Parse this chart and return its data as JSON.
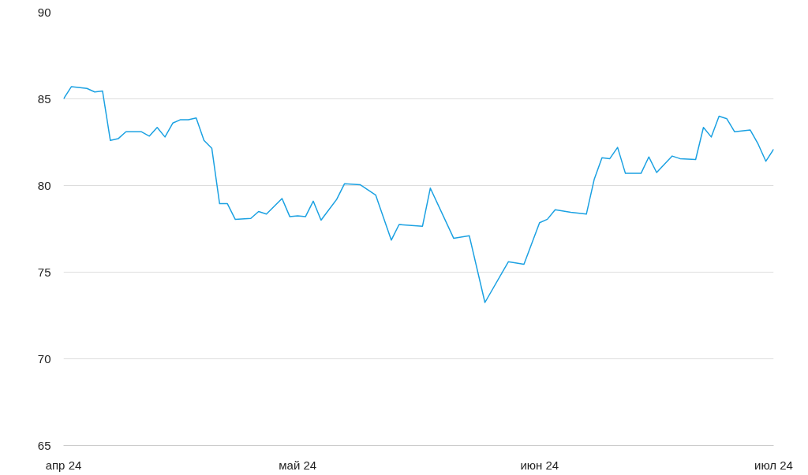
{
  "chart_data": {
    "type": "line",
    "x": [
      "2024-04-01",
      "2024-04-02",
      "2024-04-04",
      "2024-04-05",
      "2024-04-06",
      "2024-04-07",
      "2024-04-08",
      "2024-04-09",
      "2024-04-11",
      "2024-04-12",
      "2024-04-13",
      "2024-04-14",
      "2024-04-15",
      "2024-04-16",
      "2024-04-17",
      "2024-04-18",
      "2024-04-19",
      "2024-04-20",
      "2024-04-21",
      "2024-04-22",
      "2024-04-23",
      "2024-04-25",
      "2024-04-26",
      "2024-04-27",
      "2024-04-29",
      "2024-04-30",
      "2024-05-01",
      "2024-05-02",
      "2024-05-03",
      "2024-05-04",
      "2024-05-06",
      "2024-05-07",
      "2024-05-09",
      "2024-05-11",
      "2024-05-13",
      "2024-05-14",
      "2024-05-17",
      "2024-05-18",
      "2024-05-21",
      "2024-05-23",
      "2024-05-25",
      "2024-05-28",
      "2024-05-30",
      "2024-06-01",
      "2024-06-02",
      "2024-06-03",
      "2024-06-05",
      "2024-06-07",
      "2024-06-08",
      "2024-06-09",
      "2024-06-10",
      "2024-06-11",
      "2024-06-12",
      "2024-06-14",
      "2024-06-15",
      "2024-06-16",
      "2024-06-18",
      "2024-06-19",
      "2024-06-21",
      "2024-06-22",
      "2024-06-23",
      "2024-06-24",
      "2024-06-25",
      "2024-06-26",
      "2024-06-28",
      "2024-06-29",
      "2024-06-30",
      "2024-07-01"
    ],
    "series": [
      {
        "color": "#1ba1e2",
        "values": [
          85.0,
          85.7,
          85.6,
          85.4,
          85.45,
          82.6,
          82.7,
          83.1,
          83.1,
          82.85,
          83.35,
          82.8,
          83.6,
          83.8,
          83.8,
          83.9,
          82.6,
          82.15,
          78.95,
          78.95,
          78.05,
          78.1,
          78.5,
          78.35,
          79.25,
          78.2,
          78.25,
          78.2,
          79.1,
          78.0,
          79.2,
          80.1,
          80.05,
          79.45,
          76.85,
          77.75,
          77.65,
          79.85,
          76.95,
          77.1,
          73.25,
          75.6,
          75.45,
          77.85,
          78.05,
          78.6,
          78.45,
          78.35,
          80.35,
          81.6,
          81.55,
          82.2,
          80.7,
          80.7,
          81.65,
          80.75,
          81.7,
          81.55,
          81.5,
          83.35,
          82.8,
          84.0,
          83.85,
          83.1,
          83.2,
          82.4,
          81.4,
          82.1
        ]
      }
    ],
    "xlim": [
      "2024-04-01",
      "2024-07-01"
    ],
    "xticks": [
      {
        "value": "2024-04-01",
        "label": "апр 24"
      },
      {
        "value": "2024-05-01",
        "label": "май 24"
      },
      {
        "value": "2024-06-01",
        "label": "июн 24"
      },
      {
        "value": "2024-07-01",
        "label": "июл 24"
      }
    ],
    "ylim": [
      65,
      90
    ],
    "yticks": [
      65,
      70,
      75,
      80,
      85,
      90
    ],
    "grid": "y",
    "marker": "none",
    "line_style": "solid"
  }
}
